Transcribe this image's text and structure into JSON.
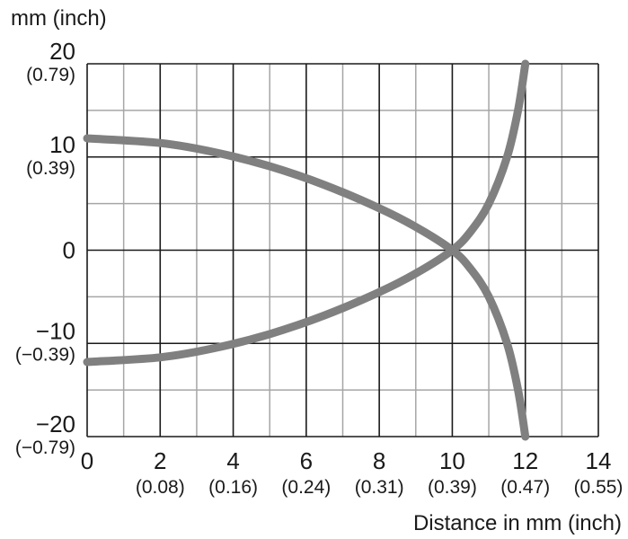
{
  "chart_data": {
    "type": "line",
    "ylabel": "mm (inch)",
    "xlabel": "Distance in mm (inch)",
    "xlim": [
      0,
      14
    ],
    "ylim": [
      -20,
      20
    ],
    "grid": true,
    "x_ticks": [
      {
        "value": 0,
        "label": "0",
        "sub": ""
      },
      {
        "value": 2,
        "label": "2",
        "sub": "(0.08)"
      },
      {
        "value": 4,
        "label": "4",
        "sub": "(0.16)"
      },
      {
        "value": 6,
        "label": "6",
        "sub": "(0.24)"
      },
      {
        "value": 8,
        "label": "8",
        "sub": "(0.31)"
      },
      {
        "value": 10,
        "label": "10",
        "sub": "(0.39)"
      },
      {
        "value": 12,
        "label": "12",
        "sub": "(0.47)"
      },
      {
        "value": 14,
        "label": "14",
        "sub": "(0.55)"
      }
    ],
    "y_ticks": [
      {
        "value": 20,
        "label": "20",
        "sub": "(0.79)"
      },
      {
        "value": 10,
        "label": "10",
        "sub": "(0.39)"
      },
      {
        "value": 0,
        "label": "0",
        "sub": ""
      },
      {
        "value": -10,
        "label": "−10",
        "sub": "(−0.39)"
      },
      {
        "value": -20,
        "label": "−20",
        "sub": "(−0.79)"
      }
    ],
    "series": [
      {
        "color": "#808080",
        "points": [
          [
            0,
            12
          ],
          [
            2,
            11.5
          ],
          [
            3.5,
            10.5
          ],
          [
            5,
            9
          ],
          [
            6.5,
            7
          ],
          [
            8,
            4.5
          ],
          [
            9,
            2.5
          ],
          [
            10,
            0
          ],
          [
            10.5,
            -2
          ],
          [
            11,
            -5
          ],
          [
            11.5,
            -10
          ],
          [
            11.8,
            -15
          ],
          [
            12,
            -20
          ]
        ]
      },
      {
        "color": "#808080",
        "points": [
          [
            0,
            -12
          ],
          [
            2,
            -11.5
          ],
          [
            3.5,
            -10.5
          ],
          [
            5,
            -9
          ],
          [
            6.5,
            -7
          ],
          [
            8,
            -4.5
          ],
          [
            9,
            -2.5
          ],
          [
            10,
            0
          ],
          [
            10.5,
            2
          ],
          [
            11,
            5
          ],
          [
            11.5,
            10
          ],
          [
            11.8,
            15
          ],
          [
            12,
            20
          ]
        ]
      }
    ]
  }
}
